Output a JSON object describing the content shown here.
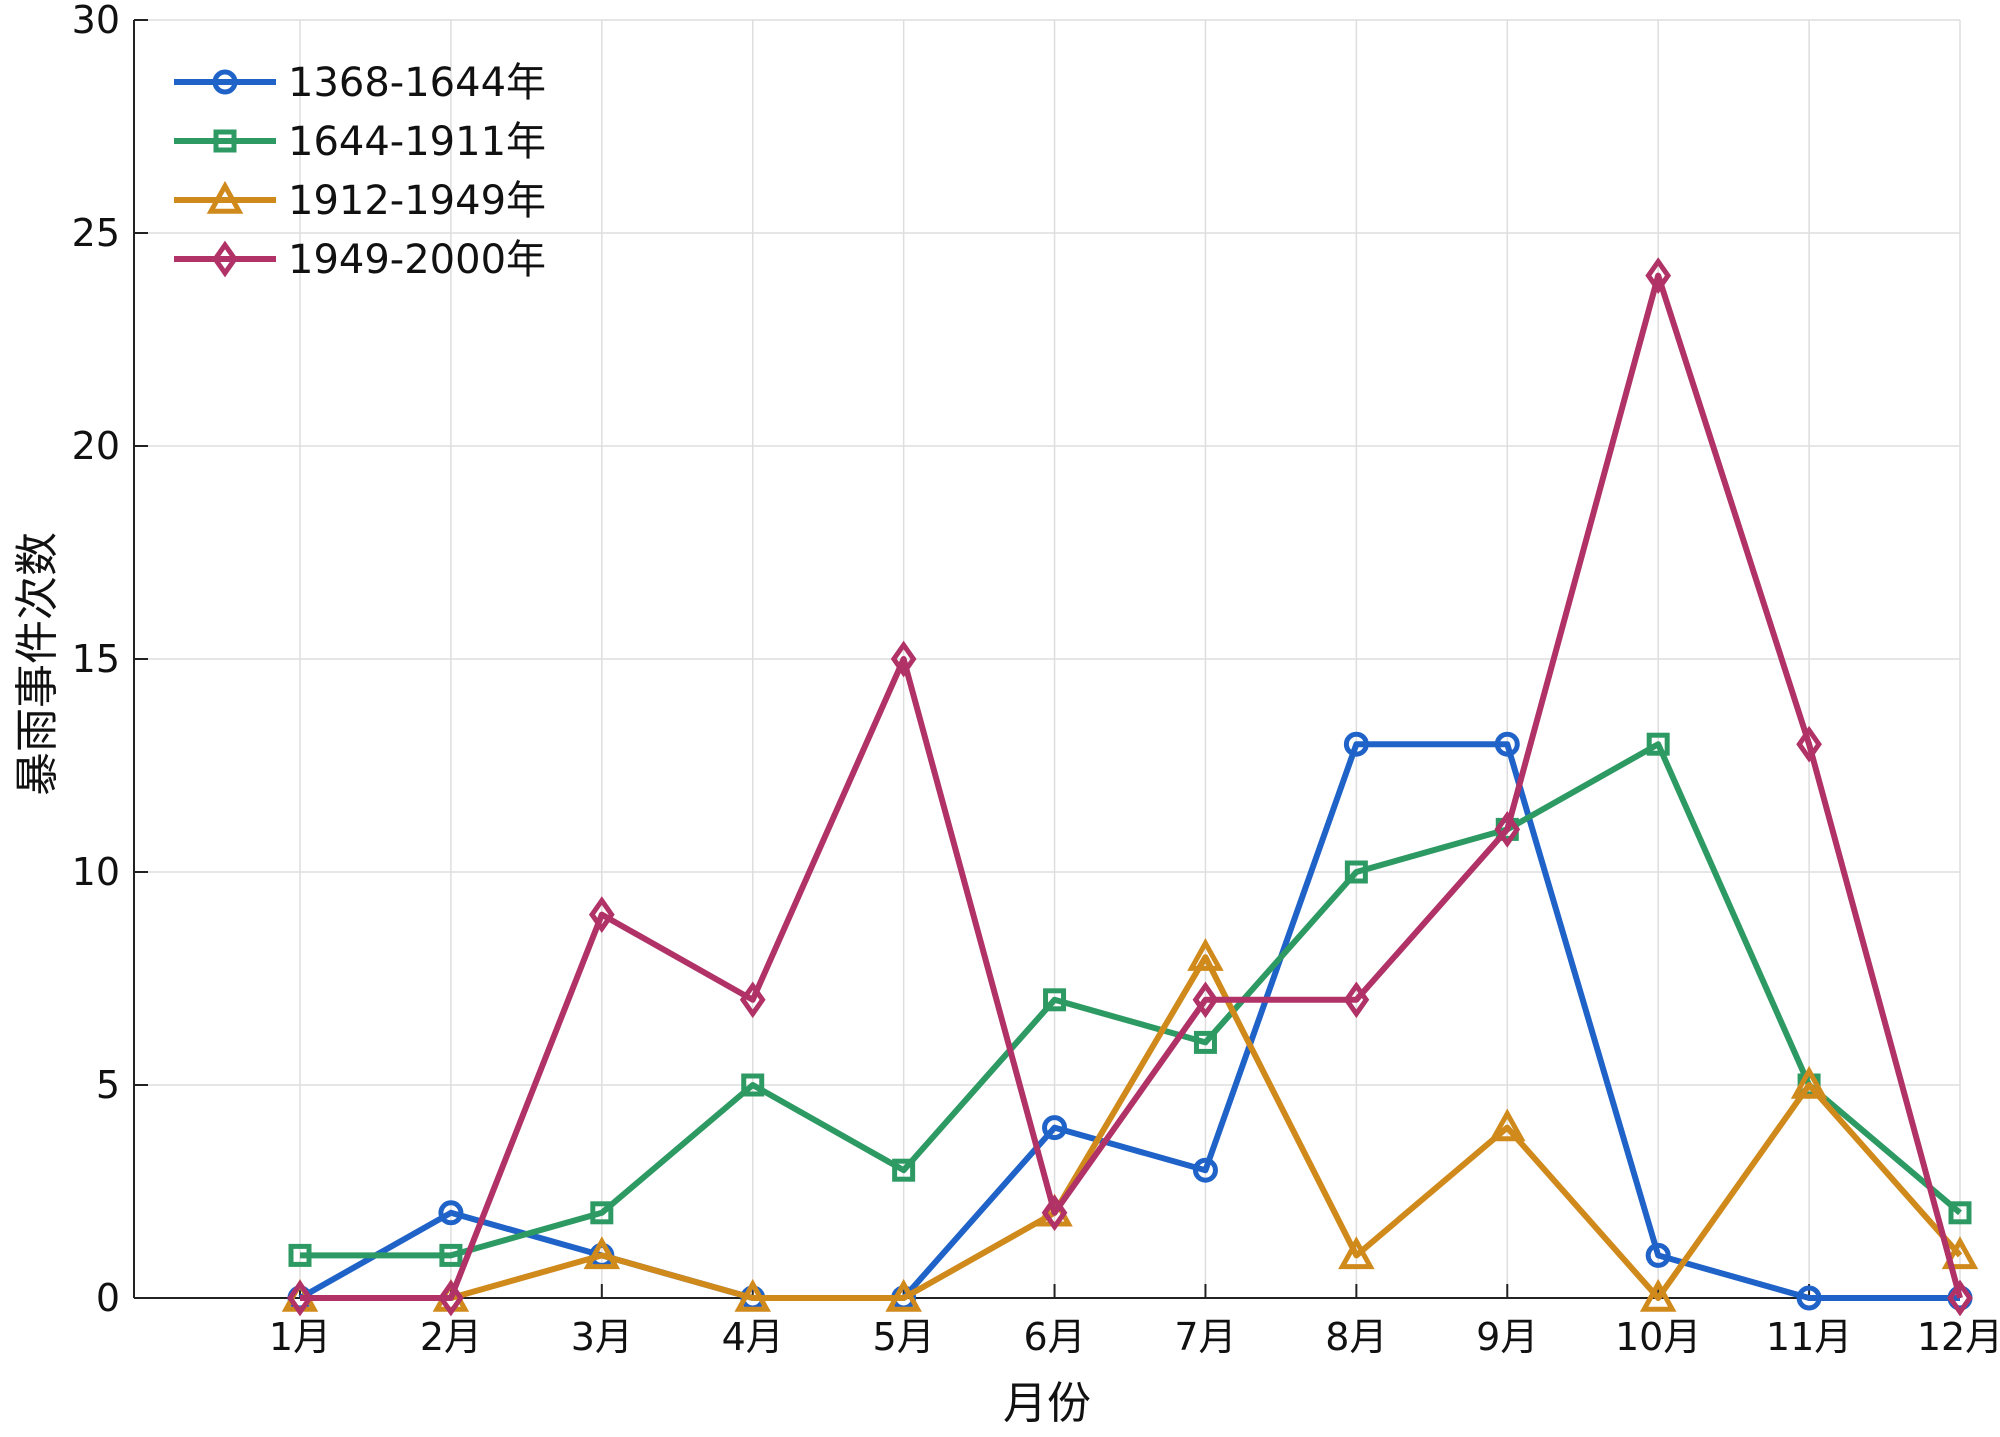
{
  "chart_data": {
    "type": "line",
    "title": "",
    "xlabel": "月份",
    "ylabel": "暴雨事件次数",
    "categories": [
      "1月",
      "2月",
      "3月",
      "4月",
      "5月",
      "6月",
      "7月",
      "8月",
      "9月",
      "10月",
      "11月",
      "12月"
    ],
    "ylim": [
      0,
      30
    ],
    "yticks": [
      0,
      5,
      10,
      15,
      20,
      25,
      30
    ],
    "grid": true,
    "legend_position": "top-left",
    "series": [
      {
        "name": "1368-1644年",
        "color": "#1f62c8",
        "marker": "circle",
        "values": [
          0,
          2,
          1,
          0,
          0,
          4,
          3,
          13,
          13,
          1,
          0,
          0
        ]
      },
      {
        "name": "1644-1911年",
        "color": "#2e9a63",
        "marker": "square",
        "values": [
          1,
          1,
          2,
          5,
          3,
          7,
          6,
          10,
          11,
          13,
          5,
          2
        ]
      },
      {
        "name": "1912-1949年",
        "color": "#d08a1c",
        "marker": "triangle",
        "values": [
          0,
          0,
          1,
          0,
          0,
          2,
          8,
          1,
          4,
          0,
          5,
          1
        ]
      },
      {
        "name": "1949-2000年",
        "color": "#b03266",
        "marker": "diamond",
        "values": [
          0,
          0,
          9,
          7,
          15,
          2,
          7,
          7,
          11,
          24,
          13,
          0
        ]
      }
    ]
  }
}
